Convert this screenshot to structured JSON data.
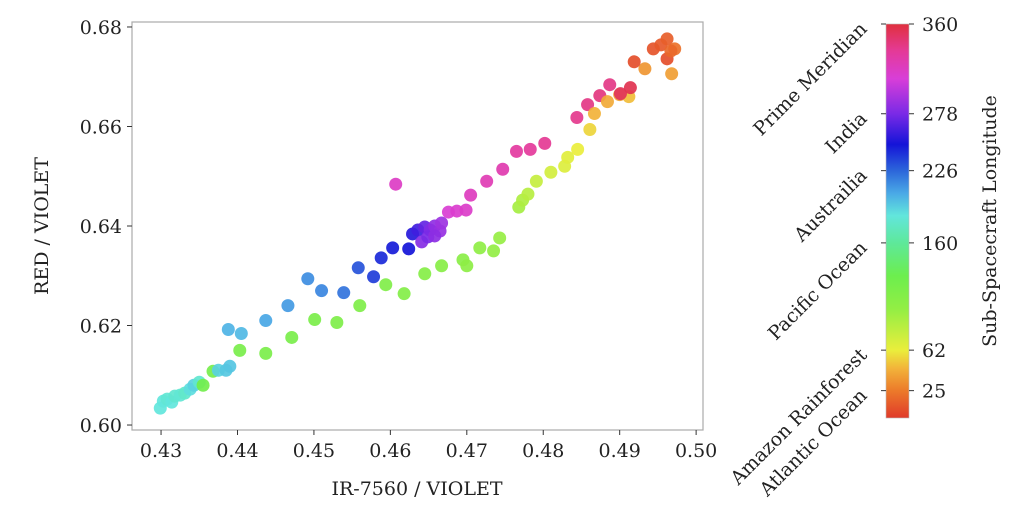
{
  "chart_data": {
    "type": "scatter",
    "xlabel": "IR-7560 / VIOLET",
    "ylabel": "RED / VIOLET",
    "xlim": [
      0.4262,
      0.5009
    ],
    "ylim": [
      0.599,
      0.681
    ],
    "xticks": [
      0.43,
      0.44,
      0.45,
      0.46,
      0.47,
      0.48,
      0.49,
      0.5
    ],
    "xtick_labels": [
      "0.43",
      "0.44",
      "0.45",
      "0.46",
      "0.47",
      "0.48",
      "0.49",
      "0.50"
    ],
    "yticks": [
      0.6,
      0.62,
      0.64,
      0.66,
      0.68
    ],
    "ytick_labels": [
      "0.60",
      "0.62",
      "0.64",
      "0.66",
      "0.68"
    ],
    "grid": false,
    "colorbar": {
      "label": "Sub-Spacecraft Longitude",
      "range": [
        0,
        360
      ],
      "ticks": [
        25,
        62,
        160,
        226,
        278,
        360
      ],
      "tick_labels": [
        "25",
        "62",
        "160",
        "226",
        "278",
        "360"
      ],
      "location_labels": [
        {
          "text": "Prime Meridian",
          "value": 360
        },
        {
          "text": "India",
          "value": 278
        },
        {
          "text": "Austrailia",
          "value": 226
        },
        {
          "text": "Pacific Ocean",
          "value": 160
        },
        {
          "text": "Amazon Rainforest",
          "value": 62
        },
        {
          "text": "Atlantic Ocean",
          "value": 25
        }
      ],
      "colormap": [
        {
          "v": 0,
          "c": "#e03a2a"
        },
        {
          "v": 25,
          "c": "#ec7a2a"
        },
        {
          "v": 45,
          "c": "#f2b23a"
        },
        {
          "v": 62,
          "c": "#eaee3c"
        },
        {
          "v": 100,
          "c": "#92ee44"
        },
        {
          "v": 130,
          "c": "#6cee4e"
        },
        {
          "v": 160,
          "c": "#5ee89a"
        },
        {
          "v": 185,
          "c": "#62e6dc"
        },
        {
          "v": 205,
          "c": "#4aaae6"
        },
        {
          "v": 226,
          "c": "#2c66da"
        },
        {
          "v": 250,
          "c": "#1414d8"
        },
        {
          "v": 278,
          "c": "#7a2ae6"
        },
        {
          "v": 310,
          "c": "#d83ed8"
        },
        {
          "v": 335,
          "c": "#e43a98"
        },
        {
          "v": 360,
          "c": "#e0303e"
        }
      ]
    },
    "points": [
      [
        0.4299,
        0.6034,
        185
      ],
      [
        0.4303,
        0.6048,
        185
      ],
      [
        0.4308,
        0.6052,
        182
      ],
      [
        0.4314,
        0.6046,
        185
      ],
      [
        0.4318,
        0.6058,
        180
      ],
      [
        0.4325,
        0.606,
        182
      ],
      [
        0.4331,
        0.6064,
        178
      ],
      [
        0.4338,
        0.6072,
        188
      ],
      [
        0.4343,
        0.608,
        192
      ],
      [
        0.435,
        0.6086,
        180
      ],
      [
        0.4355,
        0.608,
        125
      ],
      [
        0.4368,
        0.6108,
        122
      ],
      [
        0.4403,
        0.615,
        120
      ],
      [
        0.4437,
        0.6144,
        118
      ],
      [
        0.4471,
        0.6176,
        120
      ],
      [
        0.4501,
        0.6212,
        118
      ],
      [
        0.453,
        0.6206,
        116
      ],
      [
        0.456,
        0.624,
        115
      ],
      [
        0.4594,
        0.6282,
        114
      ],
      [
        0.4618,
        0.6264,
        112
      ],
      [
        0.4645,
        0.6304,
        110
      ],
      [
        0.4667,
        0.632,
        108
      ],
      [
        0.4695,
        0.6332,
        106
      ],
      [
        0.47,
        0.632,
        104
      ],
      [
        0.4717,
        0.6356,
        102
      ],
      [
        0.4735,
        0.635,
        100
      ],
      [
        0.4743,
        0.6376,
        98
      ],
      [
        0.4375,
        0.611,
        192
      ],
      [
        0.4385,
        0.611,
        195
      ],
      [
        0.439,
        0.6118,
        196
      ],
      [
        0.4388,
        0.6192,
        202
      ],
      [
        0.4405,
        0.6184,
        200
      ],
      [
        0.4437,
        0.621,
        206
      ],
      [
        0.4466,
        0.624,
        210
      ],
      [
        0.4492,
        0.6294,
        214
      ],
      [
        0.451,
        0.627,
        216
      ],
      [
        0.4539,
        0.6266,
        222
      ],
      [
        0.4558,
        0.6316,
        232
      ],
      [
        0.4578,
        0.6298,
        238
      ],
      [
        0.4588,
        0.6336,
        244
      ],
      [
        0.4603,
        0.6356,
        248
      ],
      [
        0.4624,
        0.6354,
        250
      ],
      [
        0.4629,
        0.6384,
        255
      ],
      [
        0.4636,
        0.6392,
        262
      ],
      [
        0.4645,
        0.6398,
        272
      ],
      [
        0.4652,
        0.6392,
        280
      ],
      [
        0.4658,
        0.64,
        285
      ],
      [
        0.4665,
        0.639,
        288
      ],
      [
        0.4641,
        0.6368,
        282
      ],
      [
        0.4649,
        0.6378,
        278
      ],
      [
        0.4658,
        0.638,
        284
      ],
      [
        0.4667,
        0.6406,
        290
      ],
      [
        0.4607,
        0.6484,
        318
      ],
      [
        0.4676,
        0.6428,
        312
      ],
      [
        0.4687,
        0.643,
        314
      ],
      [
        0.4699,
        0.6432,
        316
      ],
      [
        0.4705,
        0.6462,
        320
      ],
      [
        0.4726,
        0.649,
        324
      ],
      [
        0.4747,
        0.6514,
        326
      ],
      [
        0.4765,
        0.655,
        332
      ],
      [
        0.4783,
        0.6554,
        334
      ],
      [
        0.4802,
        0.6566,
        336
      ],
      [
        0.4844,
        0.6618,
        338
      ],
      [
        0.4858,
        0.6644,
        340
      ],
      [
        0.4874,
        0.6662,
        342
      ],
      [
        0.4887,
        0.6684,
        340
      ],
      [
        0.4768,
        0.6438,
        92
      ],
      [
        0.4773,
        0.6452,
        88
      ],
      [
        0.478,
        0.6464,
        84
      ],
      [
        0.4791,
        0.649,
        78
      ],
      [
        0.481,
        0.6508,
        72
      ],
      [
        0.4828,
        0.652,
        68
      ],
      [
        0.4832,
        0.6538,
        66
      ],
      [
        0.4845,
        0.6554,
        62
      ],
      [
        0.4861,
        0.6594,
        55
      ],
      [
        0.4867,
        0.6626,
        45
      ],
      [
        0.4884,
        0.665,
        42
      ],
      [
        0.49,
        0.6664,
        40
      ],
      [
        0.4912,
        0.666,
        48
      ],
      [
        0.4933,
        0.6716,
        35
      ],
      [
        0.4968,
        0.6706,
        38
      ],
      [
        0.4901,
        0.6666,
        352
      ],
      [
        0.4914,
        0.6678,
        355
      ],
      [
        0.4919,
        0.673,
        8
      ],
      [
        0.4944,
        0.6756,
        10
      ],
      [
        0.4954,
        0.6764,
        12
      ],
      [
        0.4962,
        0.6776,
        14
      ],
      [
        0.4962,
        0.6736,
        8
      ],
      [
        0.4972,
        0.6756,
        22
      ],
      [
        0.4967,
        0.6752,
        18
      ]
    ]
  }
}
